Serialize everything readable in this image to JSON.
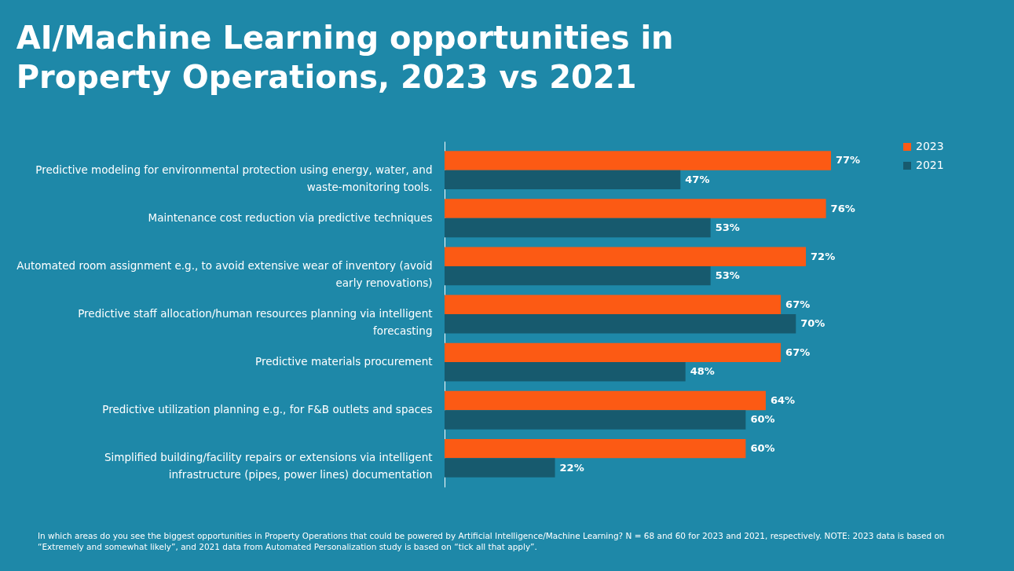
{
  "chart_data": {
    "type": "bar",
    "orientation": "horizontal",
    "title": "AI/Machine Learning opportunities in Property Operations, 2023 vs 2021",
    "categories": [
      "Predictive modeling for environmental protection using energy, water, and waste-monitoring tools.",
      "Maintenance cost reduction via predictive techniques",
      "Automated room assignment e.g., to avoid extensive wear of inventory (avoid early renovations)",
      "Predictive staff allocation/human resources planning via intelligent forecasting",
      "Predictive materials procurement",
      "Predictive utilization planning e.g., for F&B outlets and spaces",
      "Simplified building/facility repairs or extensions via intelligent infrastructure (pipes, power lines) documentation"
    ],
    "series": [
      {
        "name": "2023",
        "color": "#fc5a14",
        "values": [
          77,
          76,
          72,
          67,
          67,
          64,
          60
        ],
        "value_labels": [
          "77%",
          "76%",
          "72%",
          "67%",
          "67%",
          "64%",
          "60%"
        ]
      },
      {
        "name": "2021",
        "color": "#175a6e",
        "values": [
          47,
          53,
          53,
          70,
          48,
          60,
          22
        ],
        "value_labels": [
          "47%",
          "53%",
          "53%",
          "70%",
          "48%",
          "60%",
          "22%"
        ]
      }
    ],
    "legend": "right",
    "grid": false,
    "annotations": [
      "In which areas do you see the biggest opportunities in Property Operations that could be powered by Artificial Intelligence/Machine Learning?  N = 68 and 60 for 2023 and 2021, respectively. NOTE: 2023 data is based on “Extremely and somewhat likely”, and 2021 data from Automated Personalization study is based on “tick all that apply”."
    ]
  }
}
